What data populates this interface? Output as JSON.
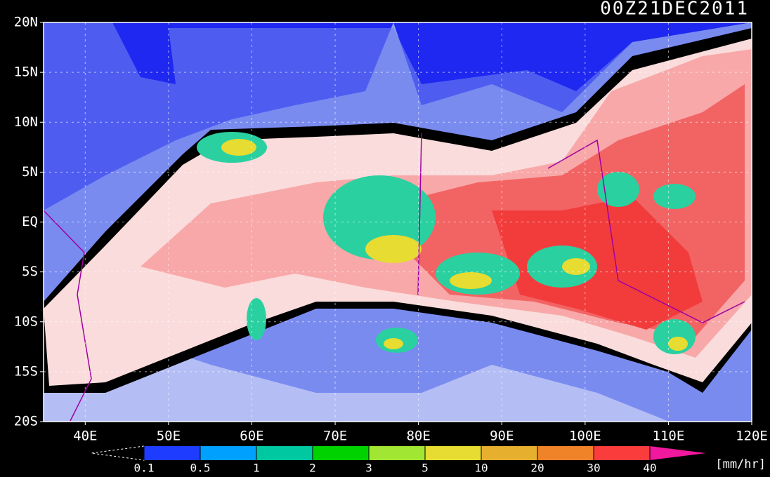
{
  "header": {
    "timestamp": "00Z21DEC2011"
  },
  "map": {
    "lat_labels": [
      "20N",
      "15N",
      "10N",
      "5N",
      "EQ",
      "5S",
      "10S",
      "15S",
      "20S"
    ],
    "lon_labels": [
      "40E",
      "50E",
      "60E",
      "70E",
      "80E",
      "90E",
      "100E",
      "110E",
      "120E"
    ]
  },
  "colorbar": {
    "labels": [
      "0.1",
      "0.5",
      "1",
      "2",
      "3",
      "5",
      "10",
      "20",
      "30",
      "40"
    ],
    "colors": [
      "#1e3cff",
      "#00a0ff",
      "#00c8a0",
      "#00d200",
      "#a0e632",
      "#e6dc32",
      "#e6af2d",
      "#f08228",
      "#fa3c3c"
    ],
    "unit": "[mm/hr]"
  }
}
